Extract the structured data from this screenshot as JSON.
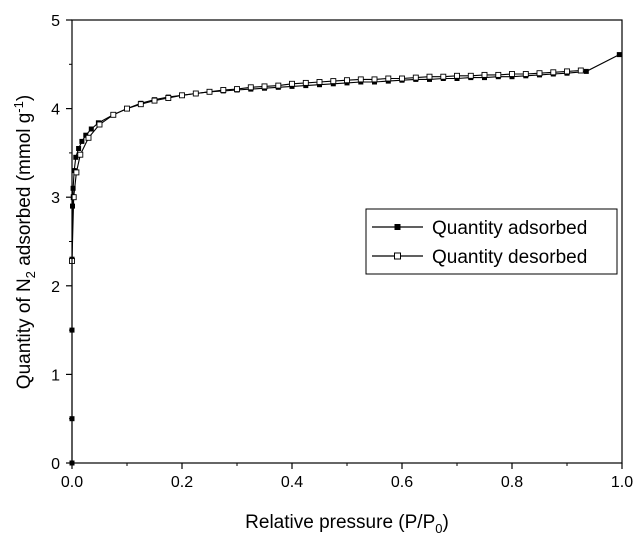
{
  "chart_data": {
    "type": "line",
    "title": "",
    "xlabel": "Relative pressure (P/P0)",
    "xlabel_main": "Relative pressure (P/P",
    "xlabel_sub": "0",
    "xlabel_tail": ")",
    "ylabel": "Quantity of N2 adsorbed (mmol g-1)",
    "ylabel_p1": "Quantity of N",
    "ylabel_sub": "2",
    "ylabel_p2": " adsorbed (mmol g",
    "ylabel_sup": "-1",
    "ylabel_p3": ")",
    "xlim": [
      0.0,
      1.0
    ],
    "ylim": [
      0,
      5
    ],
    "x_ticks": [
      "0.0",
      "0.2",
      "0.4",
      "0.6",
      "0.8",
      "1.0"
    ],
    "y_ticks": [
      "0",
      "1",
      "2",
      "3",
      "4",
      "5"
    ],
    "grid": false,
    "legend_position": "right-middle",
    "series": [
      {
        "name": "Quantity adsorbed",
        "marker": "filled-square",
        "color": "#000000",
        "x": [
          0.0,
          0.0,
          0.0,
          0.0,
          0.001,
          0.002,
          0.004,
          0.007,
          0.012,
          0.018,
          0.025,
          0.035,
          0.048,
          0.075,
          0.1,
          0.125,
          0.15,
          0.175,
          0.2,
          0.225,
          0.25,
          0.275,
          0.3,
          0.325,
          0.35,
          0.375,
          0.4,
          0.425,
          0.45,
          0.475,
          0.5,
          0.525,
          0.55,
          0.575,
          0.6,
          0.625,
          0.65,
          0.675,
          0.7,
          0.725,
          0.75,
          0.775,
          0.8,
          0.825,
          0.85,
          0.875,
          0.9,
          0.935,
          0.995
        ],
        "y": [
          0.0,
          0.5,
          1.5,
          2.3,
          2.9,
          3.1,
          3.3,
          3.45,
          3.55,
          3.63,
          3.7,
          3.77,
          3.84,
          3.93,
          4.0,
          4.06,
          4.1,
          4.13,
          4.15,
          4.17,
          4.19,
          4.2,
          4.21,
          4.22,
          4.23,
          4.24,
          4.25,
          4.26,
          4.27,
          4.28,
          4.29,
          4.3,
          4.3,
          4.31,
          4.32,
          4.33,
          4.33,
          4.34,
          4.34,
          4.35,
          4.35,
          4.36,
          4.36,
          4.37,
          4.38,
          4.39,
          4.4,
          4.42,
          4.61
        ]
      },
      {
        "name": "Quantity desorbed",
        "marker": "open-square",
        "color": "#000000",
        "x": [
          0.925,
          0.9,
          0.875,
          0.85,
          0.825,
          0.8,
          0.775,
          0.75,
          0.725,
          0.7,
          0.675,
          0.65,
          0.625,
          0.6,
          0.575,
          0.55,
          0.525,
          0.5,
          0.475,
          0.45,
          0.425,
          0.4,
          0.375,
          0.35,
          0.325,
          0.3,
          0.275,
          0.25,
          0.225,
          0.2,
          0.175,
          0.15,
          0.125,
          0.1,
          0.075,
          0.05,
          0.03,
          0.015,
          0.008,
          0.003,
          0.0
        ],
        "y": [
          4.43,
          4.42,
          4.41,
          4.4,
          4.39,
          4.39,
          4.38,
          4.38,
          4.37,
          4.37,
          4.36,
          4.36,
          4.35,
          4.34,
          4.34,
          4.33,
          4.33,
          4.32,
          4.31,
          4.3,
          4.29,
          4.28,
          4.26,
          4.25,
          4.24,
          4.22,
          4.21,
          4.19,
          4.17,
          4.15,
          4.12,
          4.09,
          4.05,
          4.0,
          3.93,
          3.82,
          3.67,
          3.48,
          3.28,
          3.0,
          2.28
        ]
      }
    ]
  }
}
